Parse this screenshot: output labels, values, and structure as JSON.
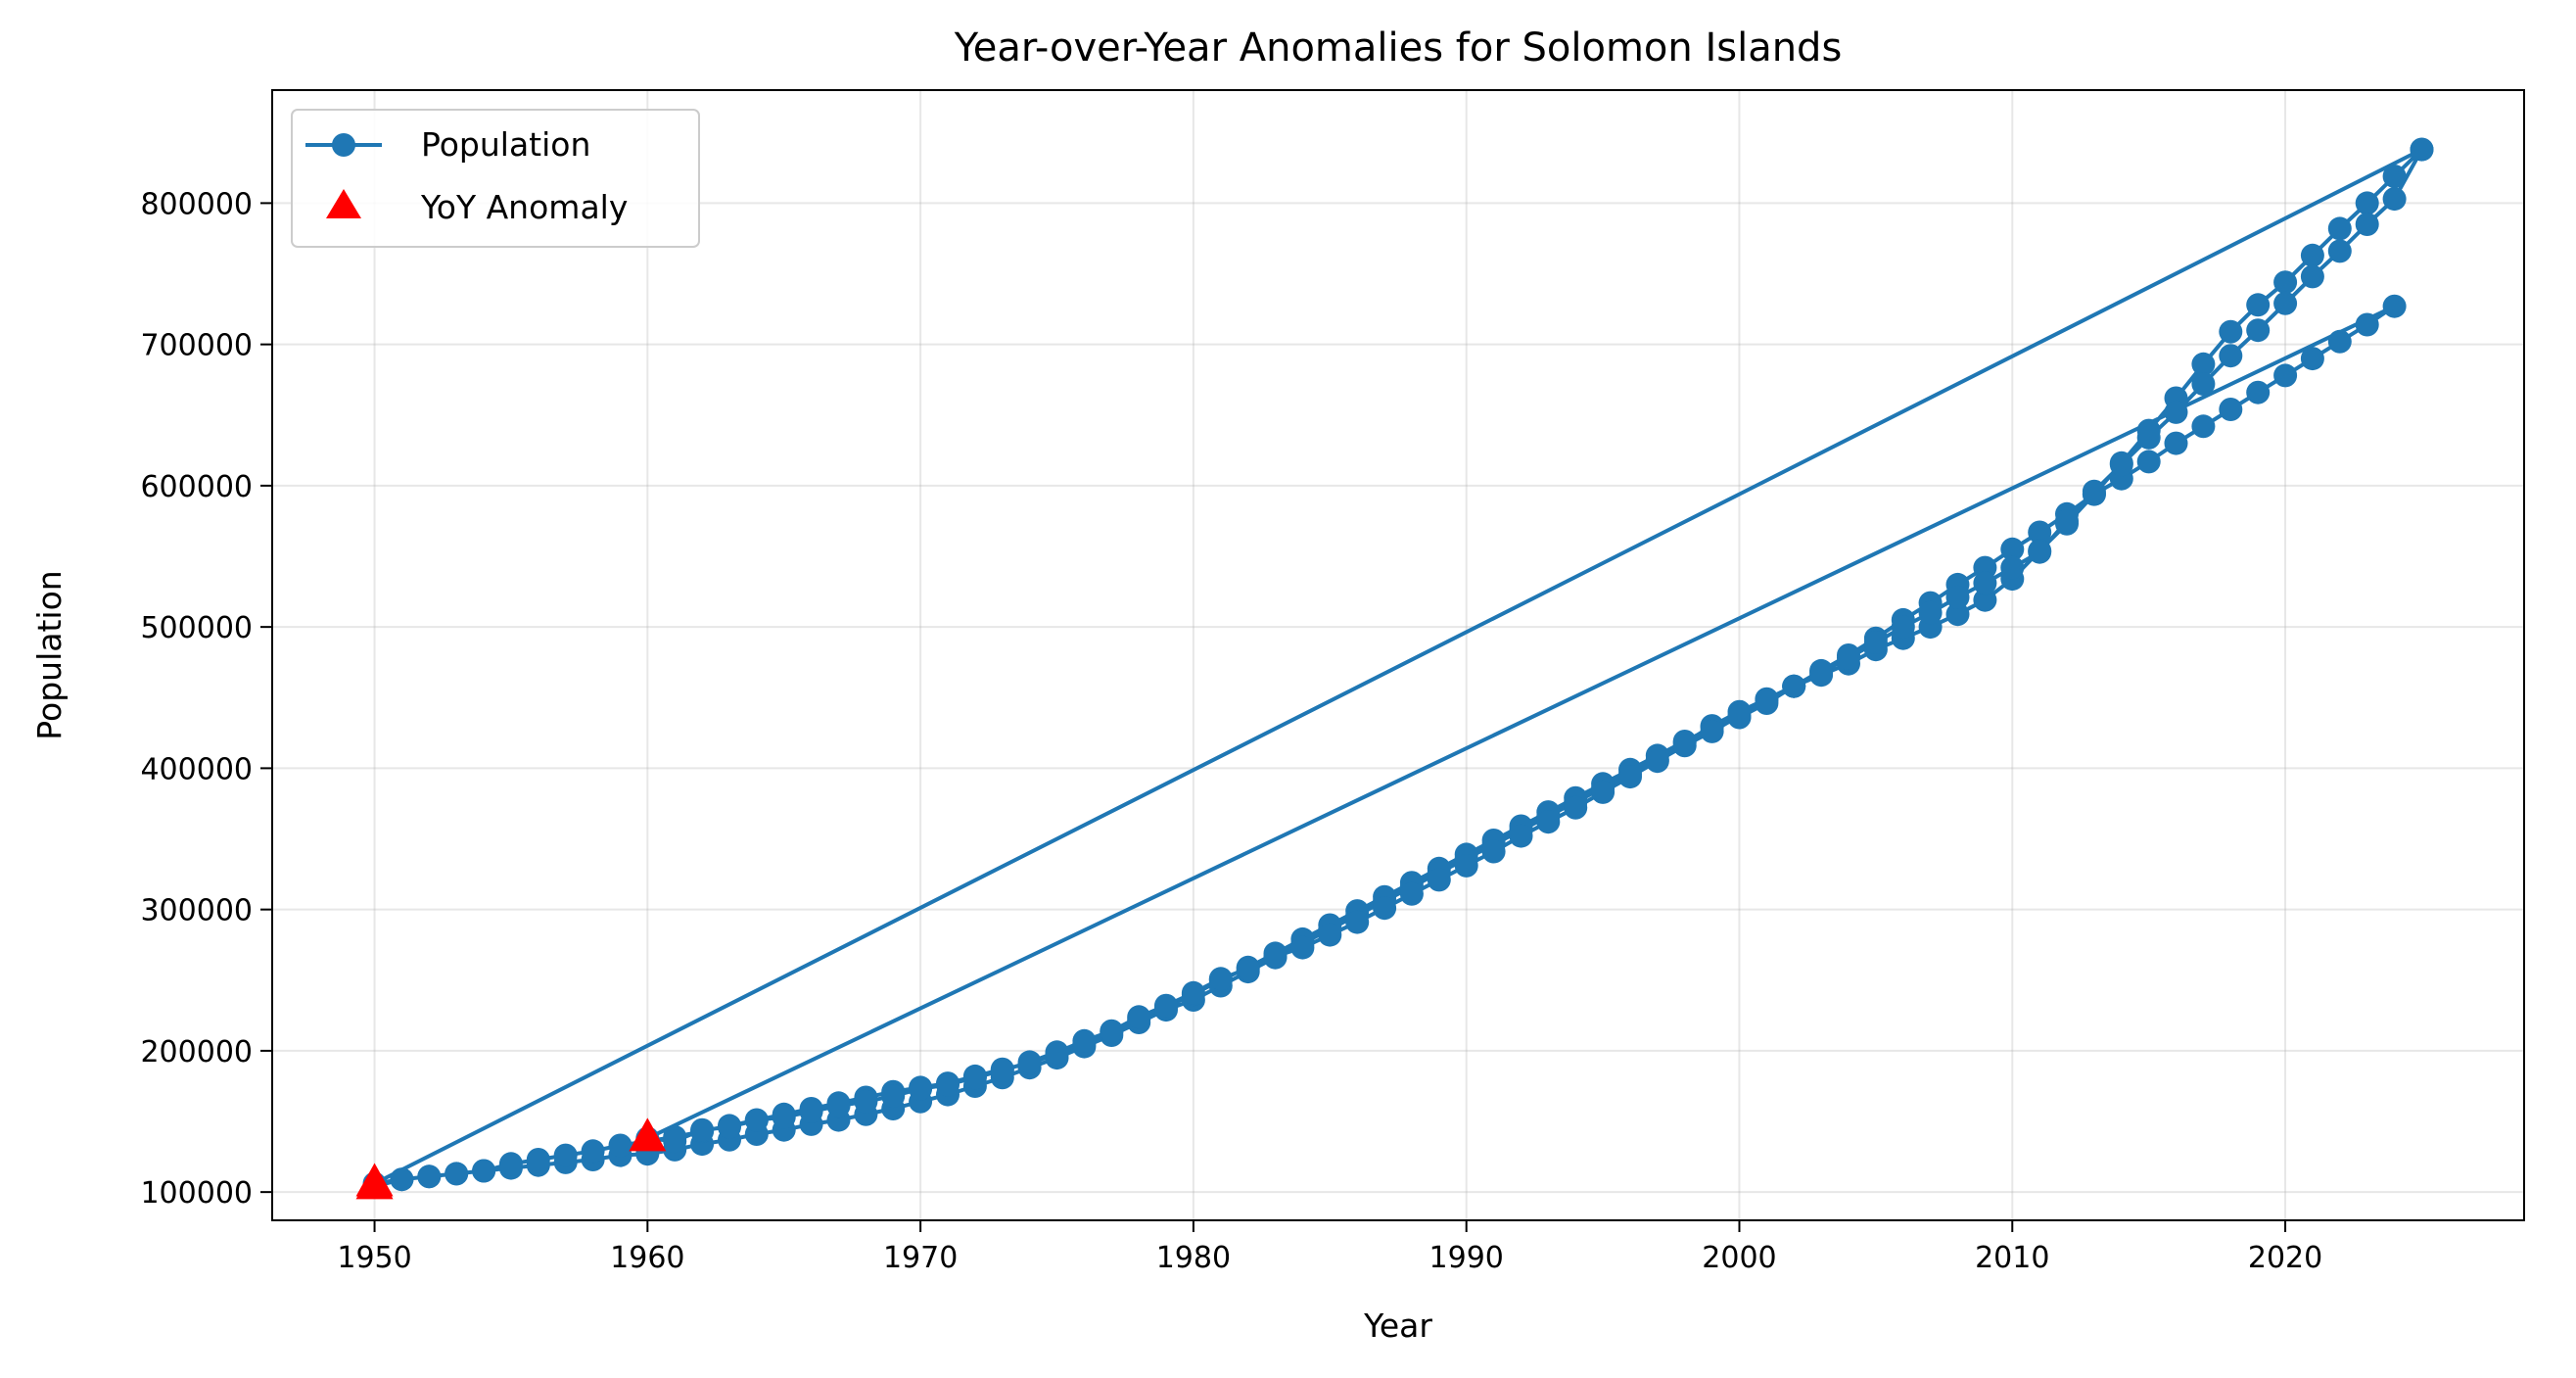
{
  "chart_data": {
    "type": "line",
    "title": "Year-over-Year Anomalies for Solomon Islands",
    "xlabel": "Year",
    "ylabel": "Population",
    "xlim": [
      1946.25,
      2028.75
    ],
    "ylim": [
      80000,
      880000
    ],
    "xticks": [
      1950,
      1960,
      1970,
      1980,
      1990,
      2000,
      2010,
      2020
    ],
    "yticks": [
      100000,
      200000,
      300000,
      400000,
      500000,
      600000,
      700000,
      800000
    ],
    "xtick_labels": [
      "1950",
      "1960",
      "1970",
      "1980",
      "1990",
      "2000",
      "2010",
      "2020"
    ],
    "ytick_labels": [
      "100000",
      "200000",
      "300000",
      "400000",
      "500000",
      "600000",
      "700000",
      "800000"
    ],
    "grid": true,
    "legend_position": "top-left",
    "colors": {
      "line": "#1f77b4",
      "anomaly": "#ff0000"
    },
    "series": [
      {
        "name": "Population",
        "style": "line-with-circle-markers",
        "points": [
          [
            1950,
            104000
          ],
          [
            1951,
            109000
          ],
          [
            1952,
            111000
          ],
          [
            1953,
            113000
          ],
          [
            1954,
            115000
          ],
          [
            1955,
            117000
          ],
          [
            1956,
            119000
          ],
          [
            1957,
            121000
          ],
          [
            1958,
            123000
          ],
          [
            1959,
            126000
          ],
          [
            1960,
            127000
          ],
          [
            1961,
            130000
          ],
          [
            1962,
            134000
          ],
          [
            1963,
            137000
          ],
          [
            1964,
            141000
          ],
          [
            1965,
            144000
          ],
          [
            1966,
            148000
          ],
          [
            1967,
            151000
          ],
          [
            1968,
            155000
          ],
          [
            1969,
            159000
          ],
          [
            1970,
            164000
          ],
          [
            1971,
            169000
          ],
          [
            1972,
            175000
          ],
          [
            1973,
            181000
          ],
          [
            1974,
            188000
          ],
          [
            1975,
            195000
          ],
          [
            1976,
            203000
          ],
          [
            1977,
            211000
          ],
          [
            1978,
            220000
          ],
          [
            1979,
            229000
          ],
          [
            1980,
            236000
          ],
          [
            1981,
            246000
          ],
          [
            1982,
            256000
          ],
          [
            1983,
            266000
          ],
          [
            1984,
            276000
          ],
          [
            1985,
            286000
          ],
          [
            1986,
            296000
          ],
          [
            1987,
            306000
          ],
          [
            1988,
            316000
          ],
          [
            1989,
            326000
          ],
          [
            1990,
            336000
          ],
          [
            1991,
            346000
          ],
          [
            1992,
            356000
          ],
          [
            1993,
            366000
          ],
          [
            1994,
            376000
          ],
          [
            1995,
            386000
          ],
          [
            1996,
            396000
          ],
          [
            1997,
            406000
          ],
          [
            1998,
            418000
          ],
          [
            1999,
            430000
          ],
          [
            2000,
            440000
          ],
          [
            2001,
            449000
          ],
          [
            2002,
            458000
          ],
          [
            2003,
            469000
          ],
          [
            2004,
            480000
          ],
          [
            2005,
            492000
          ],
          [
            2006,
            505000
          ],
          [
            2007,
            517000
          ],
          [
            2008,
            530000
          ],
          [
            2009,
            542000
          ],
          [
            2010,
            555000
          ],
          [
            2011,
            567000
          ],
          [
            2012,
            580000
          ],
          [
            2013,
            594000
          ],
          [
            2014,
            616000
          ],
          [
            2015,
            639000
          ],
          [
            2016,
            662000
          ],
          [
            2017,
            686000
          ],
          [
            2018,
            709000
          ],
          [
            2019,
            728000
          ],
          [
            2020,
            744000
          ],
          [
            2021,
            763000
          ],
          [
            2022,
            782000
          ],
          [
            2023,
            800000
          ],
          [
            2024,
            819000
          ],
          [
            2025,
            838000
          ],
          [
            1950,
            106000
          ],
          [
            1951,
            109000
          ],
          [
            1952,
            111000
          ],
          [
            1953,
            113000
          ],
          [
            1954,
            115000
          ],
          [
            1955,
            120000
          ],
          [
            1956,
            123000
          ],
          [
            1957,
            126000
          ],
          [
            1958,
            129000
          ],
          [
            1959,
            133000
          ],
          [
            1960,
            136000
          ],
          [
            1961,
            139000
          ],
          [
            1962,
            143000
          ],
          [
            1963,
            147000
          ],
          [
            1964,
            151000
          ],
          [
            1965,
            155000
          ],
          [
            1966,
            159000
          ],
          [
            1967,
            163000
          ],
          [
            1968,
            167000
          ],
          [
            1969,
            171000
          ],
          [
            1970,
            174000
          ],
          [
            1971,
            177000
          ],
          [
            1972,
            182000
          ],
          [
            1973,
            187000
          ],
          [
            1974,
            191000
          ],
          [
            1975,
            198000
          ],
          [
            1976,
            205000
          ],
          [
            1977,
            213000
          ],
          [
            1978,
            222000
          ],
          [
            1979,
            231000
          ],
          [
            1980,
            240000
          ],
          [
            1981,
            250000
          ],
          [
            1982,
            259000
          ],
          [
            1983,
            269000
          ],
          [
            1984,
            279000
          ],
          [
            1985,
            289000
          ],
          [
            1986,
            299000
          ],
          [
            1987,
            309000
          ],
          [
            1988,
            319000
          ],
          [
            1989,
            329000
          ],
          [
            1990,
            339000
          ],
          [
            1991,
            349000
          ],
          [
            1992,
            359000
          ],
          [
            1993,
            369000
          ],
          [
            1994,
            379000
          ],
          [
            1995,
            389000
          ],
          [
            1996,
            399000
          ],
          [
            1997,
            409000
          ],
          [
            1998,
            419000
          ],
          [
            1999,
            429000
          ],
          [
            2000,
            436000
          ],
          [
            2001,
            446000
          ],
          [
            2002,
            458000
          ],
          [
            2003,
            466000
          ],
          [
            2004,
            474000
          ],
          [
            2005,
            484000
          ],
          [
            2006,
            492000
          ],
          [
            2007,
            500000
          ],
          [
            2008,
            509000
          ],
          [
            2009,
            519000
          ],
          [
            2010,
            534000
          ],
          [
            2011,
            554000
          ],
          [
            2012,
            573000
          ],
          [
            2013,
            594000
          ],
          [
            2014,
            605000
          ],
          [
            2015,
            617000
          ],
          [
            2016,
            630000
          ],
          [
            2017,
            642000
          ],
          [
            2018,
            654000
          ],
          [
            2019,
            666000
          ],
          [
            2020,
            678000
          ],
          [
            2021,
            690000
          ],
          [
            2022,
            702000
          ],
          [
            2023,
            714000
          ],
          [
            2024,
            727000
          ],
          [
            1960,
            138000
          ],
          [
            1961,
            136000
          ],
          [
            1962,
            144000
          ],
          [
            1963,
            146000
          ],
          [
            1964,
            151000
          ],
          [
            1965,
            153000
          ],
          [
            1966,
            157000
          ],
          [
            1967,
            161000
          ],
          [
            1968,
            164000
          ],
          [
            1969,
            168000
          ],
          [
            1970,
            173000
          ],
          [
            1971,
            176000
          ],
          [
            1972,
            181000
          ],
          [
            1973,
            186000
          ],
          [
            1974,
            192000
          ],
          [
            1975,
            199000
          ],
          [
            1976,
            207000
          ],
          [
            1977,
            214000
          ],
          [
            1978,
            224000
          ],
          [
            1979,
            232000
          ],
          [
            1980,
            241000
          ],
          [
            1981,
            251000
          ],
          [
            1982,
            258000
          ],
          [
            1983,
            267000
          ],
          [
            1984,
            273000
          ],
          [
            1985,
            282000
          ],
          [
            1986,
            291000
          ],
          [
            1987,
            301000
          ],
          [
            1988,
            311000
          ],
          [
            1989,
            321000
          ],
          [
            1990,
            331000
          ],
          [
            1991,
            341000
          ],
          [
            1992,
            352000
          ],
          [
            1993,
            362000
          ],
          [
            1994,
            372000
          ],
          [
            1995,
            383000
          ],
          [
            1996,
            394000
          ],
          [
            1997,
            405000
          ],
          [
            1998,
            416000
          ],
          [
            1999,
            426000
          ],
          [
            2000,
            437000
          ],
          [
            2001,
            448000
          ],
          [
            2002,
            458000
          ],
          [
            2003,
            468000
          ],
          [
            2004,
            478000
          ],
          [
            2005,
            489000
          ],
          [
            2006,
            500000
          ],
          [
            2007,
            510000
          ],
          [
            2008,
            521000
          ],
          [
            2009,
            531000
          ],
          [
            2010,
            542000
          ],
          [
            2011,
            553000
          ],
          [
            2012,
            575000
          ],
          [
            2013,
            596000
          ],
          [
            2014,
            615000
          ],
          [
            2015,
            634000
          ],
          [
            2016,
            652000
          ],
          [
            2017,
            672000
          ],
          [
            2018,
            692000
          ],
          [
            2019,
            710000
          ],
          [
            2020,
            729000
          ],
          [
            2021,
            748000
          ],
          [
            2022,
            766000
          ],
          [
            2023,
            785000
          ],
          [
            2024,
            803000
          ],
          [
            2025,
            838000
          ]
        ]
      },
      {
        "name": "YoY Anomaly",
        "style": "red-triangle-markers",
        "points": [
          [
            1950,
            106000
          ],
          [
            1950,
            104000
          ],
          [
            1960,
            138000
          ]
        ]
      }
    ]
  }
}
